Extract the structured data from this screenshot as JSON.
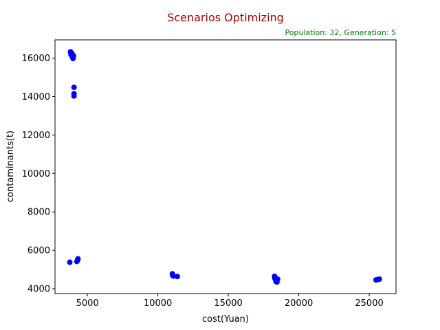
{
  "chart_data": {
    "type": "scatter",
    "title": "Scenarios Optimizing",
    "subtitle": "Population: 32, Generation: 5",
    "xlabel": "cost(Yuan)",
    "ylabel": "contaminants(t)",
    "xlim": [
      2700,
      26900
    ],
    "ylim": [
      3750,
      16950
    ],
    "xticks": [
      5000,
      10000,
      15000,
      20000,
      25000
    ],
    "yticks": [
      4000,
      6000,
      8000,
      10000,
      12000,
      14000,
      16000
    ],
    "grid": false,
    "colors": {
      "title": "#aa0000",
      "subtitle": "#008000",
      "points": "#0000ff"
    },
    "series": [
      {
        "points": [
          [
            3800,
            16330
          ],
          [
            3850,
            16280
          ],
          [
            3900,
            16250
          ],
          [
            3830,
            16200
          ],
          [
            3950,
            16180
          ],
          [
            3880,
            16150
          ],
          [
            4020,
            16120
          ],
          [
            3920,
            16080
          ],
          [
            3980,
            15980
          ],
          [
            3870,
            16220
          ],
          [
            4050,
            14480
          ],
          [
            4050,
            14150
          ],
          [
            4050,
            14030
          ],
          [
            3750,
            5380
          ],
          [
            4250,
            5420
          ],
          [
            4330,
            5560
          ],
          [
            4300,
            5480
          ],
          [
            11030,
            4780
          ],
          [
            11050,
            4700
          ],
          [
            11100,
            4660
          ],
          [
            11380,
            4640
          ],
          [
            18280,
            4650
          ],
          [
            18300,
            4550
          ],
          [
            18350,
            4480
          ],
          [
            18420,
            4440
          ],
          [
            18450,
            4350
          ],
          [
            18500,
            4500
          ],
          [
            18400,
            4400
          ],
          [
            18380,
            4380
          ],
          [
            25480,
            4460
          ],
          [
            25600,
            4480
          ],
          [
            25720,
            4500
          ]
        ]
      }
    ]
  }
}
